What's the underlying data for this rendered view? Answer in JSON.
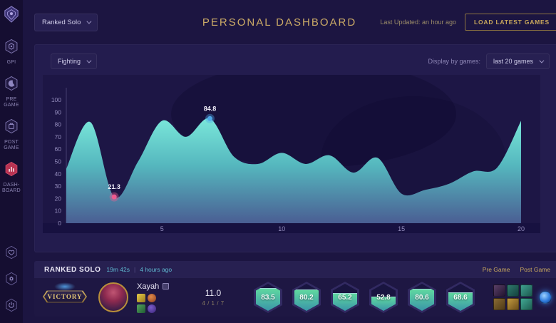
{
  "header": {
    "queue_selector": {
      "value": "Ranked Solo"
    },
    "title": "PERSONAL DASHBOARD",
    "last_updated": "Last Updated: an hour ago",
    "load_button_label": "LOAD LATEST GAMES"
  },
  "sidebar": {
    "nav": [
      {
        "label": "GPI",
        "icon": "gpi-hexagon-icon",
        "active": false
      },
      {
        "label": "PRE GAME",
        "icon": "pregame-moon-icon",
        "active": false
      },
      {
        "label": "POST GAME",
        "icon": "postgame-box-icon",
        "active": false
      },
      {
        "label": "DASH- BOARD",
        "icon": "dashboard-chart-icon",
        "active": true
      }
    ],
    "footer_icons": [
      "heart-icon",
      "settings-gear-icon",
      "power-icon"
    ]
  },
  "filters": {
    "category_selector": {
      "value": "Fighting"
    },
    "display_by_label": "Display by games:",
    "display_selector": {
      "value": "last 20 games"
    }
  },
  "chart_data": {
    "type": "area",
    "title": "",
    "xlabel": "",
    "ylabel": "",
    "x": [
      1,
      2,
      3,
      4,
      5,
      6,
      7,
      8,
      9,
      10,
      11,
      12,
      13,
      14,
      15,
      16,
      17,
      18,
      19,
      20
    ],
    "values": [
      44,
      82,
      21.3,
      50,
      83,
      70,
      84.8,
      54,
      48,
      57,
      48,
      55,
      41,
      53,
      24,
      27,
      32,
      42,
      45,
      83
    ],
    "ylim": [
      0,
      100
    ],
    "yticks": [
      0,
      10,
      20,
      30,
      40,
      50,
      60,
      70,
      80,
      90,
      100
    ],
    "xticks": [
      5,
      10,
      15,
      20
    ],
    "grid": false,
    "legend": "none",
    "annotations": [
      {
        "x": 3,
        "value": 21.3,
        "label": "21.3",
        "marker_color": "#ee5b90"
      },
      {
        "x": 7,
        "value": 84.8,
        "label": "84.8",
        "marker_color": "#4fa8e8"
      }
    ],
    "colors": {
      "area_top": "#7ae7da",
      "area_mid": "#55b7be",
      "area_bottom": "#4a5e93"
    }
  },
  "match_bar": {
    "header": {
      "queue": "RANKED SOLO",
      "duration": "19m 42s",
      "separator": "|",
      "time_ago": "4 hours ago",
      "links": [
        {
          "label": "Pre Game"
        },
        {
          "label": "Post Game"
        }
      ]
    },
    "result_badge": "VICTORY",
    "champion_name": "Xayah",
    "kda": "11.0",
    "kda_detail": "4 / 1 / 7",
    "stats": [
      83.5,
      80.2,
      65.2,
      52.8,
      80.6,
      68.6
    ],
    "loadout_icons": [
      "summoner-spell-icon",
      "keystone-rune-icon",
      "summoner-spell-icon",
      "secondary-rune-icon"
    ],
    "item_icons": [
      "item-icon",
      "item-icon",
      "item-icon",
      "item-icon",
      "item-icon",
      "item-icon"
    ],
    "trinket_icon": "trinket-ward-icon"
  }
}
